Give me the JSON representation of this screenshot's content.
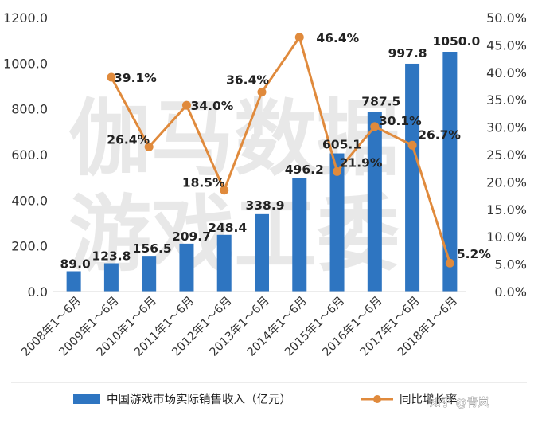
{
  "chart_data": {
    "type": "bar",
    "categories": [
      "2008年1～6月",
      "2009年1～6月",
      "2010年1～6月",
      "2011年1～6月",
      "2012年1～6月",
      "2013年1～6月",
      "2014年1～6月",
      "2015年1～6月",
      "2016年1～6月",
      "2017年1～6月",
      "2018年1～6月"
    ],
    "series": [
      {
        "name": "中国游戏市场实际销售收入（亿元）",
        "type": "bar",
        "axis": "left",
        "values": [
          89.0,
          123.8,
          156.5,
          209.7,
          248.4,
          338.9,
          496.2,
          605.1,
          787.5,
          997.8,
          1050.0
        ],
        "labels": [
          "89.0",
          "123.8",
          "156.5",
          "209.7",
          "248.4",
          "338.9",
          "496.2",
          "605.1",
          "787.5",
          "997.8",
          "1050.0"
        ],
        "color": "#2e75c1"
      },
      {
        "name": "同比增长率",
        "type": "line",
        "axis": "right",
        "values": [
          null,
          39.1,
          26.4,
          34.0,
          18.5,
          36.4,
          46.4,
          21.9,
          30.1,
          26.7,
          5.2
        ],
        "labels": [
          "",
          "39.1%",
          "26.4%",
          "34.0%",
          "18.5%",
          "36.4%",
          "46.4%",
          "21.9%",
          "30.1%",
          "26.7%",
          "5.2%"
        ],
        "color": "#e08a3c"
      }
    ],
    "y_left": {
      "min": 0,
      "max": 1200,
      "ticks": [
        "0.0",
        "200.0",
        "400.0",
        "600.0",
        "800.0",
        "1000.0",
        "1200.0"
      ]
    },
    "y_right": {
      "min": 0,
      "max": 50,
      "ticks": [
        "0.0%",
        "5.0%",
        "10.0%",
        "15.0%",
        "20.0%",
        "25.0%",
        "30.0%",
        "35.0%",
        "40.0%",
        "45.0%",
        "50.0%"
      ]
    },
    "grid": false,
    "legend_position": "bottom",
    "watermark": [
      "伽马数据",
      "游戏工委"
    ],
    "credit": "知乎 @青岚"
  }
}
